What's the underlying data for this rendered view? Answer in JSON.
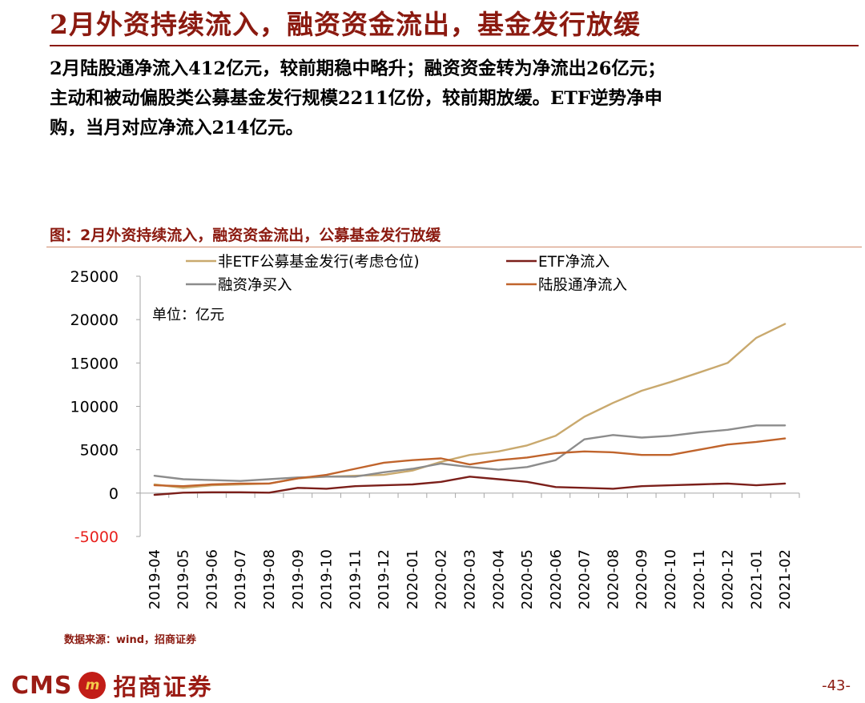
{
  "page": {
    "title": "2月外资持续流入，融资资金流出，基金发行放缓",
    "summary_lines": [
      "2月陆股通净流入412亿元，较前期稳中略升；融资资金转为净流出26亿元；",
      "主动和被动偏股类公募基金发行规模2211亿份，较前期放缓。ETF逆势净申",
      "购，当月对应净流入214亿元。"
    ],
    "chart_title": "图：2月外资持续流入，融资资金流出，公募基金发行放缓",
    "source": "数据来源：wind，招商证券",
    "brand": {
      "cms": "CMS",
      "logo_glyph": "m",
      "name": "招商证券"
    },
    "page_number": "-43-"
  },
  "chart_data": {
    "type": "line",
    "unit_label": "单位：亿元",
    "categories": [
      "2019-04",
      "2019-05",
      "2019-06",
      "2019-07",
      "2019-08",
      "2019-09",
      "2019-10",
      "2019-11",
      "2019-12",
      "2020-01",
      "2020-02",
      "2020-03",
      "2020-04",
      "2020-05",
      "2020-06",
      "2020-07",
      "2020-08",
      "2020-09",
      "2020-10",
      "2020-11",
      "2020-12",
      "2021-01",
      "2021-02"
    ],
    "ylim": [
      -5000,
      25000
    ],
    "yticks": [
      25000,
      20000,
      15000,
      10000,
      5000,
      0,
      -5000
    ],
    "ytick_labels": [
      "25000",
      "20000",
      "15000",
      "10000",
      "5000",
      "0",
      "-5000"
    ],
    "negative_tick_color": "#e8211d",
    "series": [
      {
        "name": "非ETF公募基金发行(考虑仓位)",
        "color": "#c9a96e",
        "values": [
          1000,
          600,
          900,
          1000,
          1100,
          1700,
          1900,
          2000,
          2100,
          2600,
          3600,
          4400,
          4800,
          5500,
          6600,
          8800,
          10400,
          11800,
          12800,
          13900,
          15000,
          17900,
          19500
        ]
      },
      {
        "name": "ETF净流入",
        "color": "#7b1f1a",
        "values": [
          -200,
          50,
          100,
          100,
          50,
          600,
          500,
          800,
          900,
          1000,
          1300,
          1900,
          1600,
          1300,
          700,
          600,
          500,
          800,
          900,
          1000,
          1100,
          900,
          1100
        ]
      },
      {
        "name": "融资净买入",
        "color": "#8c8c8c",
        "values": [
          2000,
          1600,
          1500,
          1400,
          1600,
          1800,
          1900,
          1900,
          2400,
          2800,
          3400,
          3000,
          2700,
          3000,
          3800,
          6200,
          6700,
          6400,
          6600,
          7000,
          7300,
          7800,
          7800
        ]
      },
      {
        "name": "陆股通净流入",
        "color": "#c0642c",
        "values": [
          900,
          800,
          1000,
          1100,
          1100,
          1700,
          2100,
          2800,
          3500,
          3800,
          4000,
          3300,
          3800,
          4100,
          4600,
          4800,
          4700,
          4400,
          4400,
          5000,
          5600,
          5900,
          6300
        ]
      }
    ],
    "legend_order": [
      0,
      1,
      2,
      3
    ],
    "legend_placement": "top",
    "grid": false
  }
}
